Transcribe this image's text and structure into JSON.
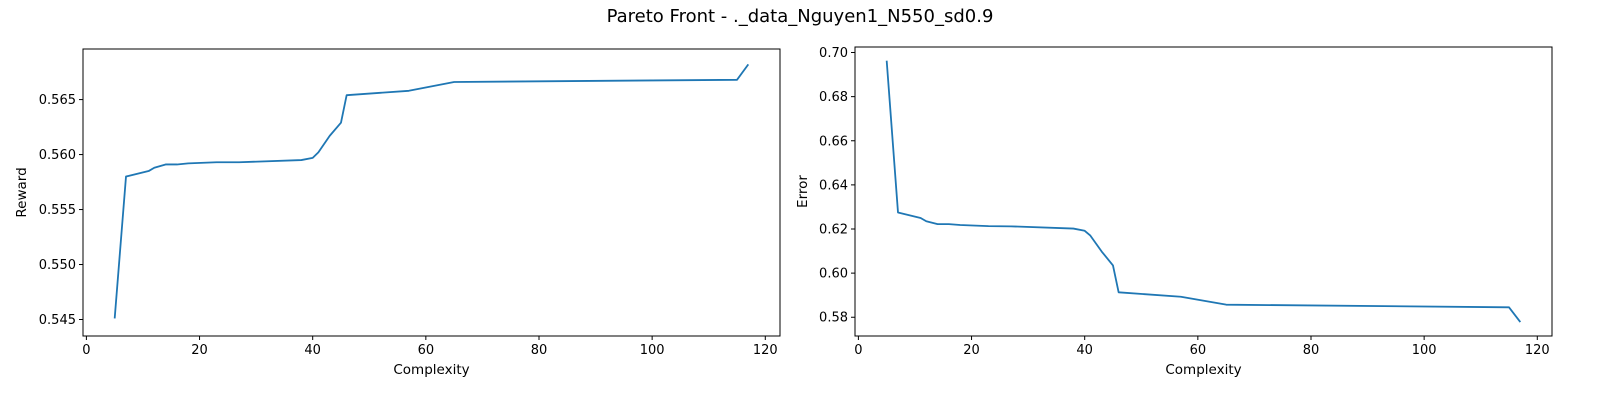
{
  "figure": {
    "title": "Pareto Front - ._data_Nguyen1_N550_sd0.9"
  },
  "chart_data": [
    {
      "type": "line",
      "xlabel": "Complexity",
      "ylabel": "Reward",
      "xlim": [
        -0.6,
        122.6
      ],
      "ylim": [
        0.5435,
        0.5696
      ],
      "xticks": [
        0,
        20,
        40,
        60,
        80,
        100,
        120
      ],
      "yticks": [
        0.545,
        0.55,
        0.555,
        0.56,
        0.565
      ],
      "ytick_labels": [
        "0.545",
        "0.550",
        "0.555",
        "0.560",
        "0.565"
      ],
      "color": "#1f77b4",
      "grid": false,
      "x": [
        5,
        7,
        11,
        12,
        14,
        16,
        18,
        23,
        27,
        38,
        40,
        41,
        43,
        45,
        46,
        57,
        65,
        115,
        117
      ],
      "y": [
        0.5451,
        0.558,
        0.5585,
        0.5588,
        0.5591,
        0.5591,
        0.5592,
        0.5593,
        0.5593,
        0.5595,
        0.5597,
        0.5602,
        0.5617,
        0.5629,
        0.5654,
        0.5658,
        0.5666,
        0.5668,
        0.5682
      ]
    },
    {
      "type": "line",
      "xlabel": "Complexity",
      "ylabel": "Error",
      "xlim": [
        -0.6,
        122.6
      ],
      "ylim": [
        0.5715,
        0.7025
      ],
      "xticks": [
        0,
        20,
        40,
        60,
        80,
        100,
        120
      ],
      "yticks": [
        0.58,
        0.6,
        0.62,
        0.64,
        0.66,
        0.68,
        0.7
      ],
      "ytick_labels": [
        "0.58",
        "0.60",
        "0.62",
        "0.64",
        "0.66",
        "0.68",
        "0.70"
      ],
      "color": "#1f77b4",
      "grid": false,
      "x": [
        5,
        7,
        11,
        12,
        14,
        16,
        18,
        23,
        27,
        38,
        40,
        41,
        43,
        45,
        46,
        57,
        65,
        115,
        117
      ],
      "y": [
        0.6963,
        0.6275,
        0.625,
        0.6235,
        0.6222,
        0.6222,
        0.6218,
        0.6213,
        0.6212,
        0.6202,
        0.6192,
        0.617,
        0.6098,
        0.6035,
        0.5913,
        0.5893,
        0.5857,
        0.5845,
        0.5778
      ]
    }
  ]
}
